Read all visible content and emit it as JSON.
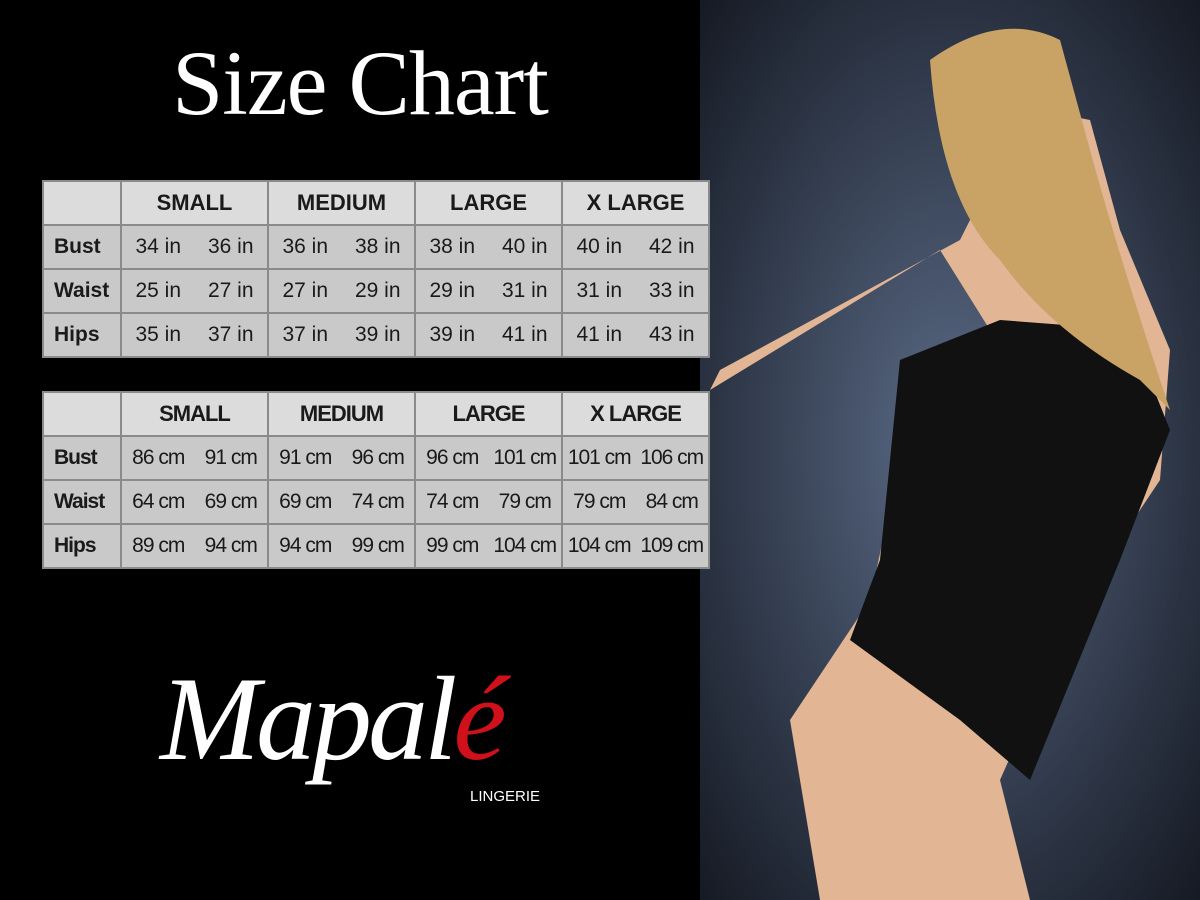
{
  "title": "Size Chart",
  "tables": [
    {
      "header": [
        "SMALL",
        "MEDIUM",
        "LARGE",
        "X LARGE"
      ],
      "rows": [
        {
          "label": "Bust",
          "cells": [
            "34 in",
            "36 in",
            "36 in",
            "38 in",
            "38 in",
            "40 in",
            "40 in",
            "42 in"
          ]
        },
        {
          "label": "Waist",
          "cells": [
            "25 in",
            "27 in",
            "27 in",
            "29 in",
            "29 in",
            "31 in",
            "31 in",
            "33 in"
          ]
        },
        {
          "label": "Hips",
          "cells": [
            "35 in",
            "37 in",
            "37 in",
            "39 in",
            "39 in",
            "41 in",
            "41 in",
            "43 in"
          ]
        }
      ]
    },
    {
      "header": [
        "SMALL",
        "MEDIUM",
        "LARGE",
        "X LARGE"
      ],
      "rows": [
        {
          "label": "Bust",
          "cells": [
            "86 cm",
            "91 cm",
            "91 cm",
            "96 cm",
            "96 cm",
            "101 cm",
            "101 cm",
            "106 cm"
          ]
        },
        {
          "label": "Waist",
          "cells": [
            "64 cm",
            "69 cm",
            "69 cm",
            "74 cm",
            "74 cm",
            "79 cm",
            "79 cm",
            "84 cm"
          ]
        },
        {
          "label": "Hips",
          "cells": [
            "89 cm",
            "94 cm",
            "94 cm",
            "99 cm",
            "99 cm",
            "104 cm",
            "104 cm",
            "109 cm"
          ]
        }
      ]
    }
  ],
  "logo": {
    "name": "Mapalé",
    "tagline": "LINGERIE"
  }
}
